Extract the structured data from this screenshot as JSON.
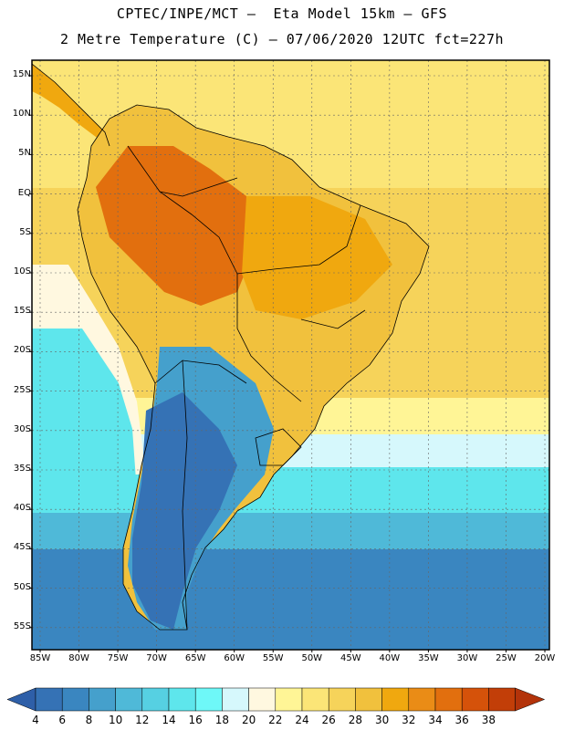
{
  "header": {
    "line1": "CPTEC/INPE/MCT –  Eta Model 15km – GFS",
    "line2": "2 Metre Temperature (C) – 07/06/2020 12UTC fct=227h"
  },
  "axes": {
    "lat_labels": [
      "15N",
      "10N",
      "5N",
      "EQ",
      "5S",
      "10S",
      "15S",
      "20S",
      "25S",
      "30S",
      "35S",
      "40S",
      "45S",
      "50S",
      "55S"
    ],
    "lon_labels": [
      "85W",
      "80W",
      "75W",
      "70W",
      "65W",
      "60W",
      "55W",
      "50W",
      "45W",
      "40W",
      "35W",
      "30W",
      "25W",
      "20W"
    ]
  },
  "colorbar": {
    "labels": [
      "4",
      "6",
      "8",
      "10",
      "12",
      "14",
      "16",
      "18",
      "20",
      "22",
      "24",
      "26",
      "28",
      "30",
      "32",
      "34",
      "36",
      "38"
    ],
    "colors": [
      "#2e5fa8",
      "#3572b5",
      "#3a86c0",
      "#45a0cc",
      "#4fb9d8",
      "#56d0e2",
      "#5ee6ec",
      "#6ef8f8",
      "#d6f8fc",
      "#fff8e0",
      "#fff596",
      "#fbe577",
      "#f6d35a",
      "#f1c13d",
      "#f0a80f",
      "#ea8c16",
      "#e26f0e",
      "#d5520a",
      "#c23e08",
      "#b3330a"
    ]
  },
  "map_colors": {
    "ocean_warm": "#fbe577",
    "ocean_warm2": "#f6d35a",
    "ocean_mild": "#fff596",
    "ocean_pale": "#fff8e0",
    "ocean_cool": "#d6f8fc",
    "ocean_cyan": "#5ee6ec",
    "ocean_teal": "#4fb9d8",
    "ocean_blue": "#3a86c0",
    "ocean_deep": "#2e5fa8",
    "land_hot": "#e26f0e",
    "land_warm": "#f0a80f",
    "land_mid": "#f1c13d",
    "land_cool": "#45a0cc",
    "land_cold": "#3572b5",
    "border": "#000000",
    "grid": "#666666"
  }
}
